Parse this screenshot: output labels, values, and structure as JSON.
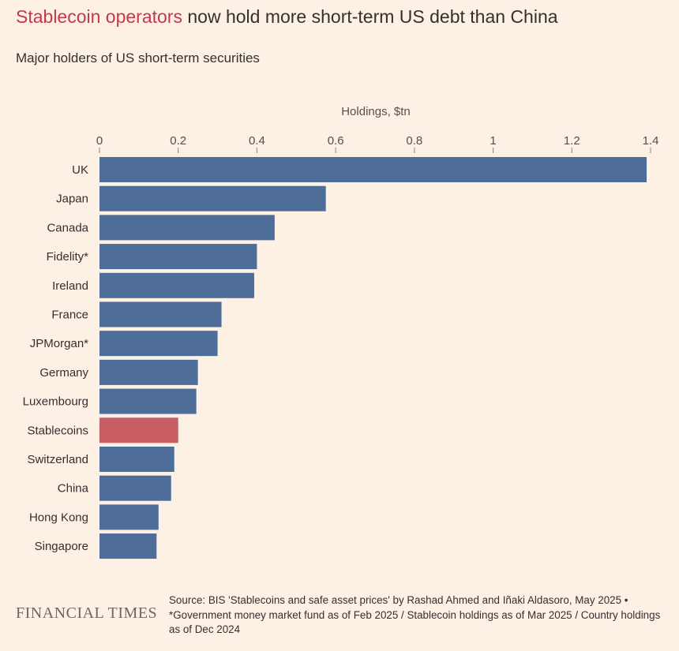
{
  "header": {
    "title_highlight": "Stablecoin operators",
    "title_rest": " now hold more short-term US debt than China",
    "subtitle": "Major holders of US short-term securities"
  },
  "footer": {
    "logo": "FINANCIAL TIMES",
    "source_line1": "Source: BIS 'Stablecoins and safe asset prices' by Rashad Ahmed and Iñaki Aldasoro, May 2025 •",
    "source_line2": "*Government money market fund as of Feb 2025 / Stablecoin holdings as of Mar 2025 / Country holdings as of Dec 2024"
  },
  "colors": {
    "bar": "#4e6d99",
    "highlight_bar": "#c95d63",
    "background": "#fdf1e6"
  },
  "chart_data": {
    "type": "bar",
    "orientation": "horizontal",
    "title": "Stablecoin operators now hold more short-term US debt than China",
    "subtitle": "Major holders of US short-term securities",
    "xlabel": "Holdings, $tn",
    "ylabel": "",
    "xlim": [
      0,
      1.4
    ],
    "xticks": [
      0,
      0.2,
      0.4,
      0.6,
      0.8,
      1,
      1.2,
      1.4
    ],
    "xtick_labels": [
      "0",
      "0.2",
      "0.4",
      "0.6",
      "0.8",
      "1",
      "1.2",
      "1.4"
    ],
    "grid": false,
    "axis_position": "top",
    "categories": [
      "UK",
      "Japan",
      "Canada",
      "Fidelity*",
      "Ireland",
      "France",
      "JPMorgan*",
      "Germany",
      "Luxembourg",
      "Stablecoins",
      "Switzerland",
      "China",
      "Hong Kong",
      "Singapore"
    ],
    "values": [
      1.39,
      0.575,
      0.445,
      0.4,
      0.393,
      0.31,
      0.3,
      0.25,
      0.246,
      0.2,
      0.19,
      0.182,
      0.15,
      0.145
    ],
    "highlight": [
      "Stablecoins"
    ]
  }
}
